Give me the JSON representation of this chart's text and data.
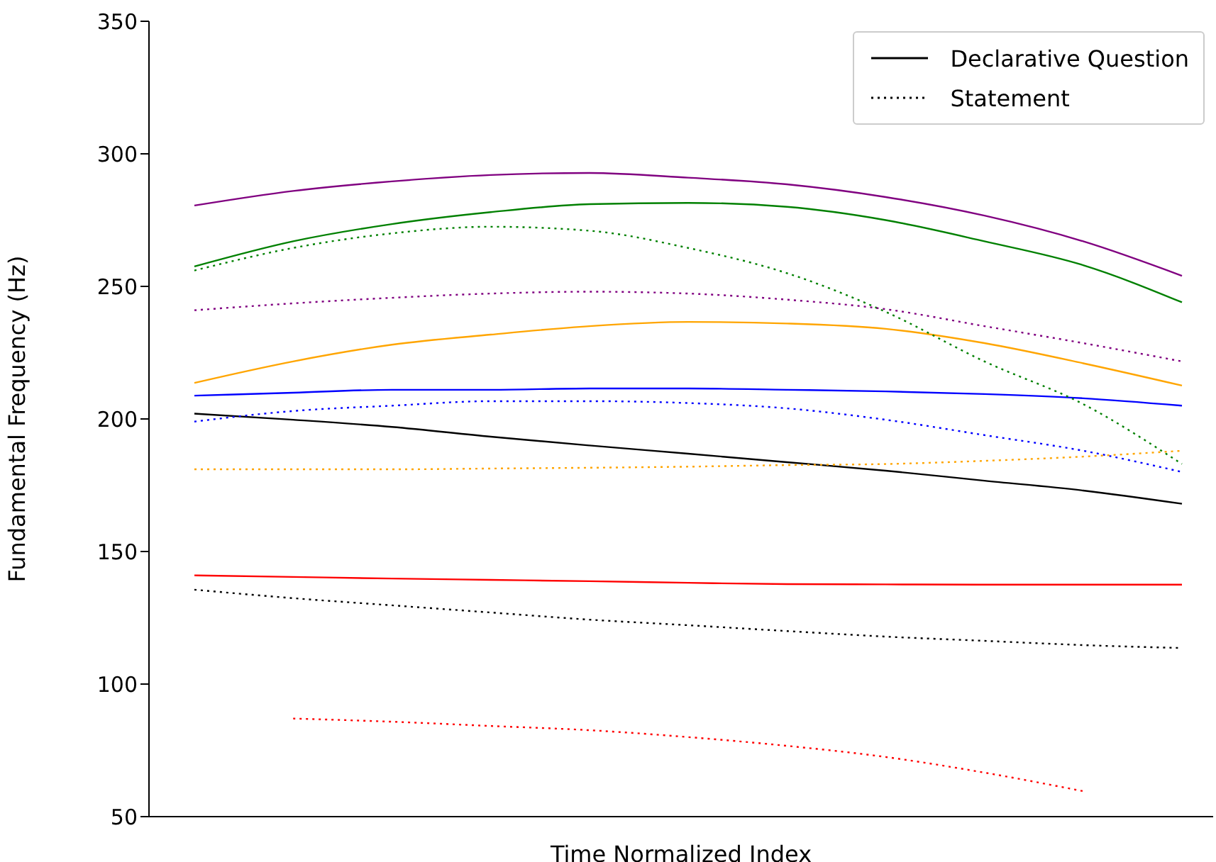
{
  "chart_data": {
    "type": "line",
    "xlabel": "Time Normalized Index",
    "ylabel": "Fundamental Frequency (Hz)",
    "categories": [
      null,
      null,
      null,
      null,
      null,
      null,
      null,
      null,
      null,
      null,
      null
    ],
    "ylim": [
      50,
      350
    ],
    "yticks": [
      50,
      100,
      150,
      200,
      250,
      300,
      350
    ],
    "legend": "top right",
    "tick_labels": "y",
    "marker": "none",
    "series": [
      {
        "color": "#800080",
        "line_style": "solid",
        "values": [
          280.5,
          286,
          289.6,
          292,
          292.8,
          291,
          288.5,
          283.7,
          276.7,
          267,
          254
        ]
      },
      {
        "color": "#008000",
        "line_style": "solid",
        "values": [
          257.5,
          267,
          273.5,
          278,
          281,
          281.5,
          280,
          275,
          267,
          258,
          244
        ]
      },
      {
        "color": "#ffa500",
        "line_style": "solid",
        "values": [
          213.6,
          221.7,
          228,
          231.8,
          235,
          236.6,
          236,
          234,
          228.6,
          221,
          212.6
        ]
      },
      {
        "color": "#0000ff",
        "line_style": "solid",
        "values": [
          208.8,
          209.9,
          211,
          211,
          211.5,
          211.5,
          211,
          210.4,
          209.4,
          207.8,
          205
        ]
      },
      {
        "name": "Declarative Question",
        "color": "#000000",
        "line_style": "solid",
        "values": [
          202,
          199.7,
          197,
          193.3,
          190,
          186.9,
          183.7,
          180.5,
          176.7,
          173,
          168
        ]
      },
      {
        "color": "#ff0000",
        "line_style": "solid",
        "values": [
          141,
          140.4,
          139.8,
          139.3,
          138.8,
          138.2,
          137.7,
          137.6,
          137.5,
          137.5,
          137.5
        ]
      },
      {
        "color": "#008000",
        "line_style": "dotted",
        "values": [
          256,
          264.5,
          270,
          272.5,
          271,
          264.5,
          255,
          240.4,
          221.7,
          205.6,
          183
        ]
      },
      {
        "color": "#800080",
        "line_style": "dotted",
        "values": [
          241,
          243.6,
          245.7,
          247.3,
          248,
          247.3,
          245,
          241.4,
          235,
          228.6,
          221.7
        ]
      },
      {
        "color": "#0000ff",
        "line_style": "dotted",
        "values": [
          199,
          203,
          205,
          206.7,
          206.7,
          206,
          204,
          199.7,
          193.9,
          188,
          180
        ]
      },
      {
        "color": "#ffa500",
        "line_style": "dotted",
        "values": [
          181,
          181,
          181,
          181.3,
          181.6,
          182,
          182.6,
          183,
          184.2,
          185.8,
          188
        ]
      },
      {
        "name": "Statement",
        "color": "#000000",
        "line_style": "dotted",
        "values": [
          135.6,
          132.4,
          129.7,
          127,
          124.3,
          122.2,
          120,
          117.9,
          116.3,
          114.7,
          113.6
        ]
      },
      {
        "color": "#ff0000",
        "line_style": "dotted",
        "values": [
          null,
          87,
          85.8,
          84.2,
          82.6,
          80,
          76.7,
          72.5,
          66.6,
          59.6,
          null
        ]
      }
    ]
  }
}
